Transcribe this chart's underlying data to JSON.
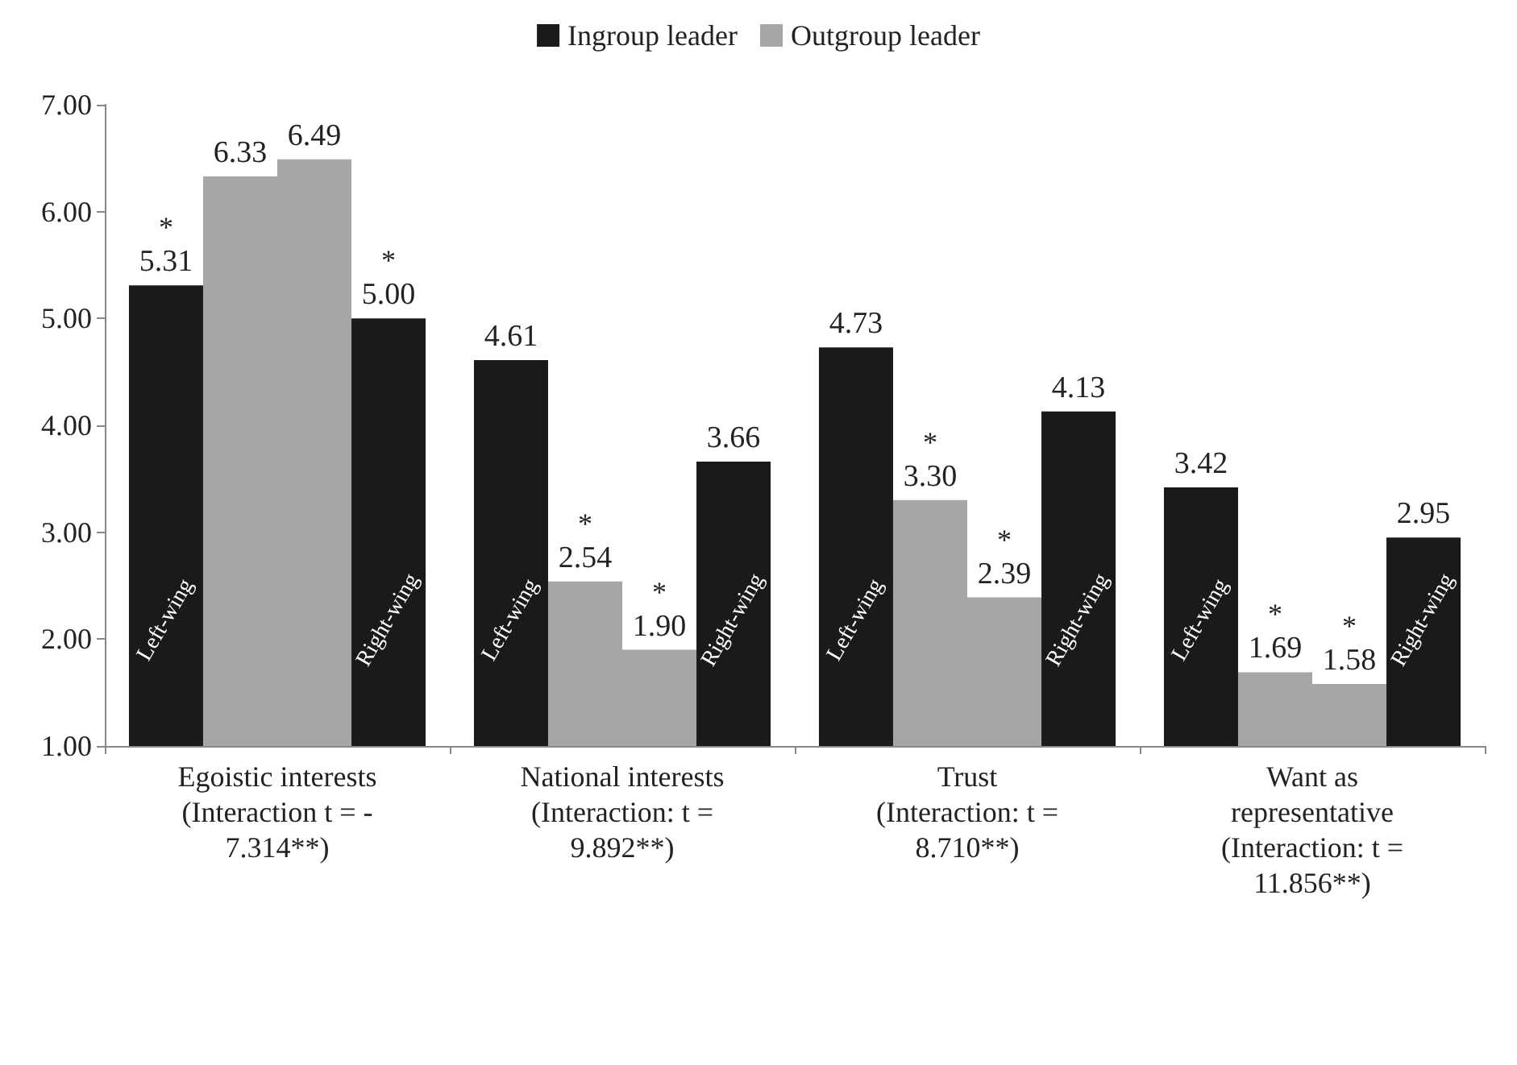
{
  "chart_data": {
    "type": "bar",
    "categories": [
      "Egoistic interests\n(Interaction t = -\n7.314**)",
      "National interests\n(Interaction: t =\n9.892**)",
      "Trust\n(Interaction: t =\n8.710**)",
      "Want as\nrepresentative\n(Interaction: t =\n11.856**)"
    ],
    "series": [
      {
        "name": "Ingroup leader",
        "color": "#1a1a1a",
        "values": [
          5.31,
          4.61,
          4.73,
          3.42
        ],
        "value_labels": [
          "5.31",
          "4.61",
          "4.73",
          "3.42"
        ]
      },
      {
        "name": "Outgroup leader",
        "color": "#a6a6a6",
        "values": [
          6.33,
          2.54,
          3.3,
          1.69
        ],
        "value_labels": [
          "6.33",
          "2.54",
          "3.30",
          "1.69"
        ]
      },
      {
        "color": "#a6a6a6",
        "values": [
          6.49,
          1.9,
          2.39,
          1.58
        ],
        "value_labels": [
          "6.49",
          "1.90",
          "2.39",
          "1.58"
        ]
      },
      {
        "color": "#1a1a1a",
        "values": [
          5.0,
          3.66,
          4.13,
          2.95
        ],
        "value_labels": [
          "5.00",
          "3.66",
          "4.13",
          "2.95"
        ]
      }
    ],
    "ylim": [
      1,
      7
    ],
    "yticks": [
      {
        "value": 1,
        "label": "1.00"
      },
      {
        "value": 2,
        "label": "2.00"
      },
      {
        "value": 3,
        "label": "3.00"
      },
      {
        "value": 4,
        "label": "4.00"
      },
      {
        "value": 5,
        "label": "5.00"
      },
      {
        "value": 6,
        "label": "6.00"
      },
      {
        "value": 7,
        "label": "7.00"
      }
    ],
    "grid": false,
    "legend": "top",
    "annotations": [
      "Left-wing",
      "*",
      "*",
      "Right-wing",
      "Left-wing",
      "*",
      "*",
      "Right-wing",
      "Left-wing",
      "*",
      "*",
      "Right-wing",
      "Left-wing",
      "*",
      "*",
      "Right-wing"
    ]
  }
}
